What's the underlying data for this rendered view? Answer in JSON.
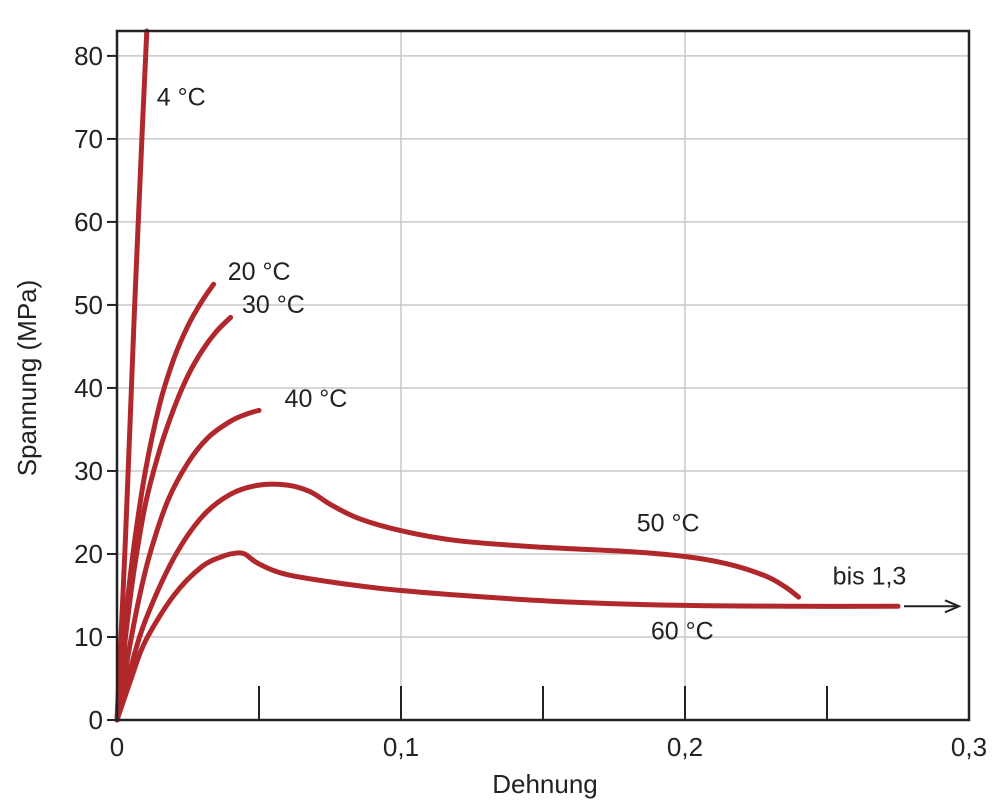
{
  "chart_data": {
    "type": "line",
    "title": "",
    "xlabel": "Dehnung",
    "ylabel": "Spannung (MPa)",
    "xlim": [
      0,
      0.3
    ],
    "ylim": [
      0,
      83
    ],
    "x_ticks": [
      0,
      0.1,
      0.2,
      0.3
    ],
    "x_tick_labels": [
      "0",
      "0,1",
      "0,2",
      "0,3"
    ],
    "x_minor_ticks": [
      0.05,
      0.15,
      0.25
    ],
    "y_ticks": [
      0,
      10,
      20,
      30,
      40,
      50,
      60,
      70,
      80
    ],
    "y_tick_labels": [
      "0",
      "10",
      "20",
      "30",
      "40",
      "50",
      "60",
      "70",
      "80"
    ],
    "grid": true,
    "line_color": "#b0282b",
    "series": [
      {
        "name": "4 °C",
        "x": [
          0,
          0.003,
          0.006,
          0.009,
          0.0105
        ],
        "y": [
          0,
          22,
          48,
          72,
          83
        ]
      },
      {
        "name": "20 °C",
        "x": [
          0,
          0.003,
          0.006,
          0.01,
          0.015,
          0.02,
          0.025,
          0.03,
          0.034
        ],
        "y": [
          0,
          12,
          21,
          30,
          38,
          43.5,
          47.5,
          50.5,
          52.5
        ]
      },
      {
        "name": "30 °C",
        "x": [
          0,
          0.003,
          0.006,
          0.01,
          0.015,
          0.02,
          0.025,
          0.03,
          0.035,
          0.04
        ],
        "y": [
          0,
          10,
          18,
          26,
          32.5,
          37.5,
          41.5,
          44.5,
          46.8,
          48.5
        ]
      },
      {
        "name": "40 °C",
        "x": [
          0,
          0.004,
          0.008,
          0.012,
          0.018,
          0.025,
          0.032,
          0.04,
          0.046,
          0.05
        ],
        "y": [
          0,
          8,
          15,
          20.5,
          26.5,
          31,
          34,
          36,
          36.9,
          37.3
        ]
      },
      {
        "name": "50 °C",
        "x": [
          0,
          0.005,
          0.01,
          0.02,
          0.03,
          0.04,
          0.05,
          0.06,
          0.068,
          0.075,
          0.085,
          0.1,
          0.12,
          0.15,
          0.18,
          0.2,
          0.215,
          0.228,
          0.235,
          0.24
        ],
        "y": [
          0,
          6.5,
          12,
          19.5,
          24.5,
          27.2,
          28.3,
          28.3,
          27.5,
          26,
          24.3,
          22.8,
          21.6,
          20.8,
          20.3,
          19.7,
          18.8,
          17.4,
          16.1,
          14.8
        ]
      },
      {
        "name": "60 °C",
        "x": [
          0,
          0.005,
          0.01,
          0.02,
          0.03,
          0.038,
          0.042,
          0.045,
          0.05,
          0.06,
          0.08,
          0.1,
          0.13,
          0.16,
          0.2,
          0.24,
          0.275
        ],
        "y": [
          0,
          5,
          9.5,
          15,
          18.5,
          19.8,
          20.1,
          20,
          18.8,
          17.5,
          16.4,
          15.6,
          14.8,
          14.2,
          13.8,
          13.7,
          13.7
        ]
      }
    ],
    "annotations": [
      {
        "text": "4 °C",
        "x": 0.014,
        "y": 74
      },
      {
        "text": "20 °C",
        "x": 0.039,
        "y": 53
      },
      {
        "text": "30 °C",
        "x": 0.044,
        "y": 49
      },
      {
        "text": "40 °C",
        "x": 0.059,
        "y": 37.7
      },
      {
        "text": "50 °C",
        "x": 0.183,
        "y": 22.7
      },
      {
        "text": "60 °C",
        "x": 0.188,
        "y": 9.7
      },
      {
        "text": "bis 1,3",
        "x": 0.252,
        "y": 16.3
      }
    ]
  }
}
